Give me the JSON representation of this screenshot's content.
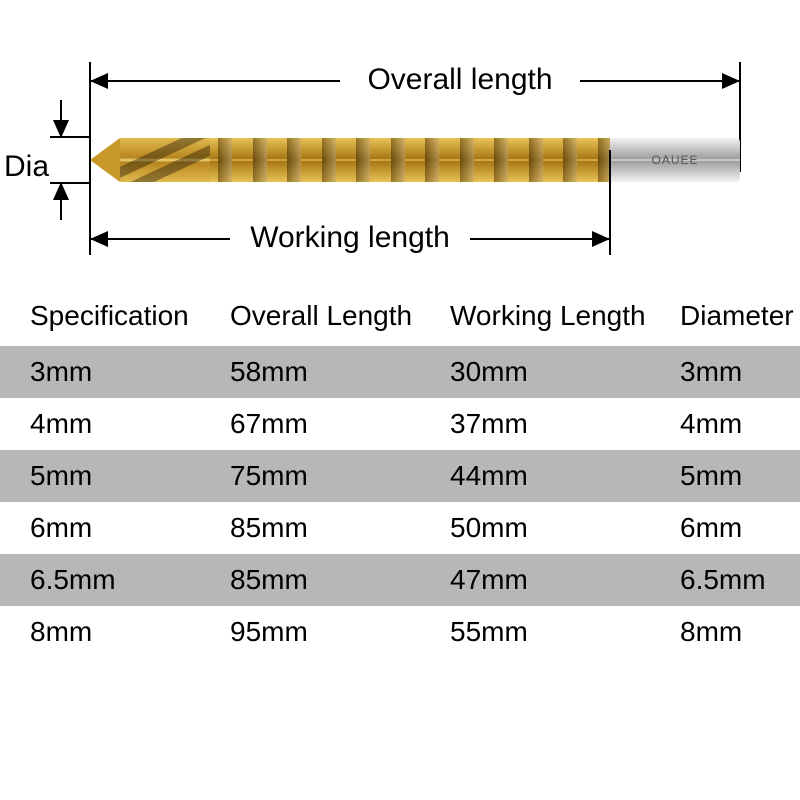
{
  "diagram": {
    "overall_label": "Overall length",
    "working_label": "Working length",
    "dia_label": "Dia",
    "shank_text": "OAUEE",
    "colors": {
      "gold_main": "#e0b94f",
      "gold_dark": "#a8760f",
      "gold_light": "#f8e59a",
      "shank_gray": "#9d9d9d",
      "line": "#000000",
      "background": "#ffffff",
      "row_gray": "#b7b7b7"
    },
    "tooth_count": 12
  },
  "table": {
    "headers": {
      "spec": "Specification",
      "overall": "Overall Length",
      "working": "Working Length",
      "dia": "Diameter"
    },
    "rows": [
      {
        "spec": "3mm",
        "overall": "58mm",
        "working": "30mm",
        "dia": "3mm",
        "shade": "gray"
      },
      {
        "spec": "4mm",
        "overall": "67mm",
        "working": "37mm",
        "dia": "4mm",
        "shade": "white"
      },
      {
        "spec": "5mm",
        "overall": "75mm",
        "working": "44mm",
        "dia": "5mm",
        "shade": "gray"
      },
      {
        "spec": "6mm",
        "overall": "85mm",
        "working": "50mm",
        "dia": "6mm",
        "shade": "white"
      },
      {
        "spec": "6.5mm",
        "overall": "85mm",
        "working": "47mm",
        "dia": "6.5mm",
        "shade": "gray"
      },
      {
        "spec": "8mm",
        "overall": "95mm",
        "working": "55mm",
        "dia": "8mm",
        "shade": "white"
      }
    ]
  }
}
